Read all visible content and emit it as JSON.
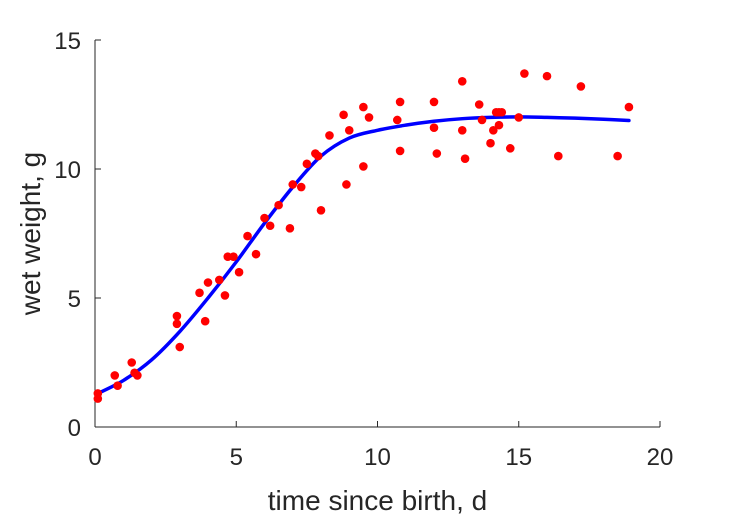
{
  "chart_data": {
    "type": "scatter",
    "title": "",
    "xlabel": "time since birth, d",
    "ylabel": "wet weight, g",
    "xlim": [
      0,
      20
    ],
    "ylim": [
      0,
      15
    ],
    "xticks": [
      "0",
      "5",
      "10",
      "15",
      "20"
    ],
    "yticks": [
      "0",
      "5",
      "10",
      "15"
    ],
    "grid": false,
    "legend": "none",
    "colors": {
      "points": "#ff0000",
      "fit_line": "#0000ff",
      "axis": "#262626"
    },
    "series": [
      {
        "kind": "points",
        "x": [
          0.1,
          0.1,
          0.7,
          0.8,
          1.3,
          1.4,
          1.5,
          2.9,
          2.9,
          3.0,
          3.7,
          3.9,
          4.0,
          4.4,
          4.6,
          4.7,
          4.9,
          5.1,
          5.4,
          5.7,
          6.0,
          6.2,
          6.5,
          6.9,
          7.0,
          7.3,
          7.5,
          7.8,
          7.9,
          8.0,
          8.3,
          8.8,
          8.9,
          9.0,
          9.5,
          9.5,
          9.7,
          10.7,
          10.8,
          10.8,
          12.0,
          12.0,
          12.1,
          13.0,
          13.0,
          13.1,
          13.6,
          13.7,
          14.0,
          14.1,
          14.2,
          14.3,
          14.3,
          14.4,
          14.7,
          15.0,
          15.2,
          16.0,
          16.4,
          17.2,
          18.5,
          18.9
        ],
        "y": [
          1.1,
          1.3,
          2.0,
          1.6,
          2.5,
          2.1,
          2.0,
          4.3,
          4.0,
          3.1,
          5.2,
          4.1,
          5.6,
          5.7,
          5.1,
          6.6,
          6.6,
          6.0,
          7.4,
          6.7,
          8.1,
          7.8,
          8.6,
          7.7,
          9.4,
          9.3,
          10.2,
          10.6,
          10.5,
          8.4,
          11.3,
          12.1,
          9.4,
          11.5,
          12.4,
          10.1,
          12.0,
          11.9,
          12.6,
          10.7,
          12.6,
          11.6,
          10.6,
          13.4,
          11.5,
          10.4,
          12.5,
          11.9,
          11.0,
          11.5,
          12.2,
          12.2,
          11.7,
          12.2,
          10.8,
          12.0,
          13.7,
          13.6,
          10.5,
          13.2,
          10.5,
          12.4
        ]
      },
      {
        "kind": "line",
        "x": [
          0.1,
          1.0,
          2.0,
          3.0,
          4.0,
          5.0,
          6.0,
          7.0,
          8.0,
          9.0,
          10.0,
          11.0,
          12.0,
          13.0,
          14.0,
          15.0,
          16.0,
          17.0,
          18.0,
          18.9
        ],
        "y": [
          1.3,
          1.8,
          2.6,
          3.7,
          5.0,
          6.4,
          7.9,
          9.3,
          10.5,
          11.2,
          11.5,
          11.7,
          11.85,
          11.95,
          12.0,
          12.02,
          12.0,
          11.97,
          11.93,
          11.88
        ]
      }
    ]
  }
}
